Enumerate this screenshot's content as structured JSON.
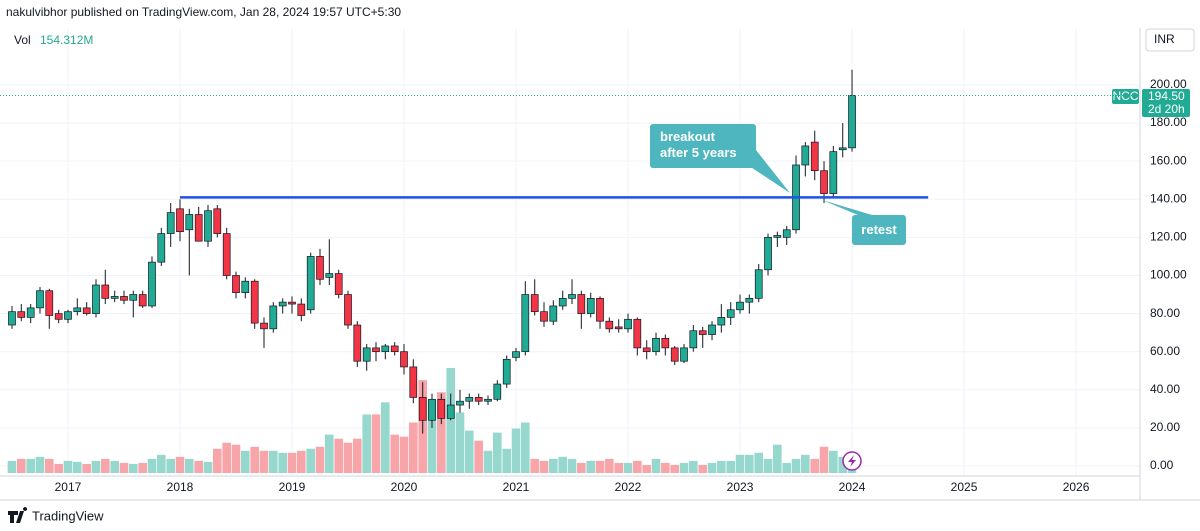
{
  "header": {
    "publisher": "nakulvibhor published on TradingView.com, Jan 28, 2024 19:57 UTC+5:30",
    "volume_title": "Vol"
  },
  "footer": {
    "brand": "TradingView"
  },
  "chart_data": {
    "type": "candlestick",
    "symbol": "NCC",
    "currency": "INR",
    "x": [
      2016.5,
      2016.583,
      2016.667,
      2016.75,
      2016.833,
      2016.917,
      2017,
      2017.083,
      2017.167,
      2017.25,
      2017.333,
      2017.417,
      2017.5,
      2017.583,
      2017.667,
      2017.75,
      2017.833,
      2017.917,
      2018,
      2018.083,
      2018.167,
      2018.25,
      2018.333,
      2018.417,
      2018.5,
      2018.583,
      2018.667,
      2018.75,
      2018.833,
      2018.917,
      2019,
      2019.083,
      2019.167,
      2019.25,
      2019.333,
      2019.417,
      2019.5,
      2019.583,
      2019.667,
      2019.75,
      2019.833,
      2019.917,
      2020,
      2020.083,
      2020.167,
      2020.25,
      2020.333,
      2020.417,
      2020.5,
      2020.583,
      2020.667,
      2020.75,
      2020.833,
      2020.917,
      2021,
      2021.083,
      2021.167,
      2021.25,
      2021.333,
      2021.417,
      2021.5,
      2021.583,
      2021.667,
      2021.75,
      2021.833,
      2021.917,
      2022,
      2022.083,
      2022.167,
      2022.25,
      2022.333,
      2022.417,
      2022.5,
      2022.583,
      2022.667,
      2022.75,
      2022.833,
      2022.917,
      2023,
      2023.083,
      2023.167,
      2023.25,
      2023.333,
      2023.417,
      2023.5,
      2023.583,
      2023.667,
      2023.75,
      2023.833,
      2023.917,
      2024
    ],
    "open": [
      74,
      81,
      78,
      83,
      92,
      80,
      77,
      81,
      83,
      80,
      95,
      88,
      89,
      87,
      90,
      84,
      107,
      122,
      135,
      124,
      132,
      118,
      135,
      122,
      100,
      91,
      97,
      75,
      72,
      84,
      86,
      85,
      82,
      110,
      99,
      101,
      90,
      74,
      55,
      62,
      60,
      63,
      60,
      52,
      36,
      24,
      35,
      25,
      32,
      34,
      36,
      34,
      35,
      43,
      57,
      60,
      90,
      81,
      76,
      84,
      88,
      90,
      80,
      88,
      76,
      73,
      72,
      77,
      62,
      60,
      67,
      62,
      55,
      62,
      71,
      69,
      74,
      78,
      82,
      86,
      88,
      103,
      120,
      120,
      124,
      158,
      170,
      155,
      143,
      166,
      167
    ],
    "high": [
      84,
      85,
      85,
      94,
      93,
      82,
      82,
      88,
      86,
      98,
      103,
      92,
      92,
      92,
      92,
      110,
      125,
      138,
      140,
      135,
      136,
      137,
      137,
      125,
      102,
      99,
      98,
      78,
      86,
      88,
      89,
      88,
      112,
      114,
      119,
      103,
      92,
      76,
      64,
      65,
      64,
      65,
      64,
      56,
      44,
      38,
      38,
      38,
      40,
      38,
      38,
      37,
      45,
      58,
      62,
      97,
      98,
      86,
      87,
      92,
      98,
      92,
      91,
      89,
      78,
      77,
      80,
      78,
      66,
      70,
      69,
      63,
      64,
      74,
      73,
      76,
      85,
      86,
      90,
      90,
      106,
      122,
      123,
      126,
      163,
      170,
      176,
      160,
      168,
      180,
      208
    ],
    "low": [
      72,
      76,
      75,
      80,
      72,
      75,
      75,
      79,
      79,
      78,
      85,
      86,
      85,
      78,
      83,
      83,
      105,
      115,
      118,
      100,
      118,
      115,
      120,
      98,
      88,
      88,
      72,
      62,
      70,
      80,
      80,
      76,
      80,
      95,
      95,
      88,
      72,
      52,
      50,
      55,
      56,
      58,
      48,
      33,
      17,
      20,
      22,
      24,
      28,
      30,
      32,
      32,
      34,
      41,
      55,
      58,
      79,
      73,
      74,
      82,
      85,
      72,
      78,
      72,
      70,
      70,
      70,
      58,
      56,
      58,
      58,
      53,
      54,
      60,
      62,
      66,
      70,
      74,
      80,
      80,
      86,
      100,
      115,
      116,
      122,
      152,
      150,
      138,
      141,
      162,
      165
    ],
    "close": [
      81,
      78,
      83,
      92,
      79,
      77,
      81,
      83,
      80,
      95,
      88,
      89,
      87,
      90,
      84,
      107,
      122,
      133,
      123,
      132,
      118,
      134,
      122,
      100,
      91,
      97,
      75,
      72,
      84,
      86,
      85,
      79,
      110,
      98,
      101,
      90,
      74,
      55,
      62,
      60,
      63,
      60,
      52,
      36,
      24,
      35,
      25,
      32,
      34,
      36,
      34,
      35,
      43,
      56,
      60,
      90,
      81,
      76,
      84,
      88,
      90,
      80,
      88,
      76,
      72,
      72,
      77,
      62,
      60,
      67,
      62,
      55,
      62,
      71,
      69,
      74,
      78,
      82,
      86,
      88,
      103,
      120,
      121,
      124,
      158,
      168,
      155,
      143,
      165,
      167,
      194.5
    ],
    "volume": [
      168,
      196,
      196,
      224,
      196,
      126,
      168,
      154,
      126,
      168,
      196,
      168,
      140,
      126,
      140,
      196,
      252,
      196,
      224,
      196,
      168,
      154,
      336,
      420,
      392,
      308,
      364,
      308,
      308,
      280,
      280,
      308,
      336,
      364,
      532,
      476,
      420,
      476,
      812,
      812,
      980,
      532,
      504,
      700,
      1288,
      1008,
      1120,
      1456,
      840,
      588,
      448,
      308,
      560,
      336,
      616,
      700,
      196,
      168,
      196,
      224,
      196,
      140,
      168,
      168,
      196,
      140,
      140,
      168,
      112,
      196,
      140,
      112,
      140,
      168,
      112,
      140,
      168,
      168,
      252,
      252,
      280,
      196,
      392,
      140,
      196,
      252,
      196,
      364,
      308,
      224,
      154.312
    ],
    "volume_label": "154.312M",
    "up_color": "#22ab94",
    "down_color": "#f23645",
    "volume_up_color": "#96d8cd",
    "volume_down_color": "#f8a5a9",
    "xlim": [
      2016.393,
      2026.571
    ],
    "ylim": [
      -5.25,
      229.9
    ],
    "xticks": [
      2017,
      2018,
      2019,
      2020,
      2021,
      2022,
      2023,
      2024,
      2025,
      2026
    ],
    "yticks": [
      {
        "value": 0,
        "label": "0.00"
      },
      {
        "value": 20,
        "label": "20.00"
      },
      {
        "value": 40,
        "label": "40.00"
      },
      {
        "value": 60,
        "label": "60.00"
      },
      {
        "value": 80,
        "label": "80.00"
      },
      {
        "value": 100,
        "label": "100.00"
      },
      {
        "value": 120,
        "label": "120.00"
      },
      {
        "value": 140,
        "label": "140.00"
      },
      {
        "value": 160,
        "label": "160.00"
      },
      {
        "value": 180,
        "label": "180.00"
      },
      {
        "value": 200,
        "label": "200.00"
      }
    ],
    "grid": true,
    "last_price": {
      "value": 194.5,
      "label": "194.50"
    },
    "countdown": "2d 20h",
    "support_line": {
      "value": 141,
      "x": [
        2018,
        2024.68
      ],
      "color": "#1e53e5"
    },
    "annotations": [
      {
        "text": "breakout after 5 years"
      },
      {
        "text": "retest"
      }
    ]
  }
}
